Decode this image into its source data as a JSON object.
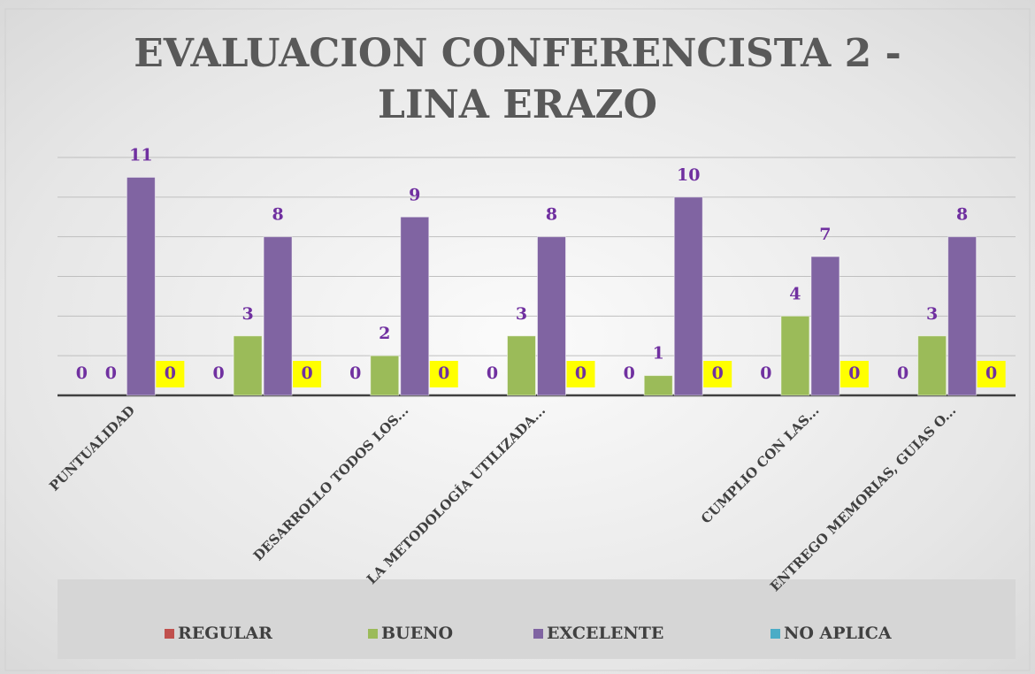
{
  "chart_data": {
    "type": "bar",
    "title": "EVALUACION CONFERENCISTA 2 - LINA ERAZO",
    "categories": [
      "PUNTUALIDAD",
      null,
      "DESARROLLO TODOS LOS...",
      "LA METODOLOGÍA UTILIZADA...",
      null,
      "CUMPLIO CON LAS...",
      "ENTREGO MEMORIAS, GUIAS O..."
    ],
    "series": [
      {
        "name": "REGULAR",
        "color": "#c0504d",
        "values": [
          0,
          0,
          0,
          0,
          0,
          0,
          0
        ]
      },
      {
        "name": "BUENO",
        "color": "#9bbb59",
        "values": [
          0,
          3,
          2,
          3,
          1,
          4,
          3
        ]
      },
      {
        "name": "EXCELENTE",
        "color": "#8064a2",
        "values": [
          11,
          8,
          9,
          8,
          10,
          7,
          8
        ]
      },
      {
        "name": "NO APLICA",
        "color": "#4bacc6",
        "values": [
          0,
          0,
          0,
          0,
          0,
          0,
          0
        ]
      }
    ],
    "ylim": [
      0,
      12
    ],
    "yticks": [
      0,
      2,
      4,
      6,
      8,
      10,
      12
    ],
    "grid": true,
    "legend": "bottom"
  }
}
